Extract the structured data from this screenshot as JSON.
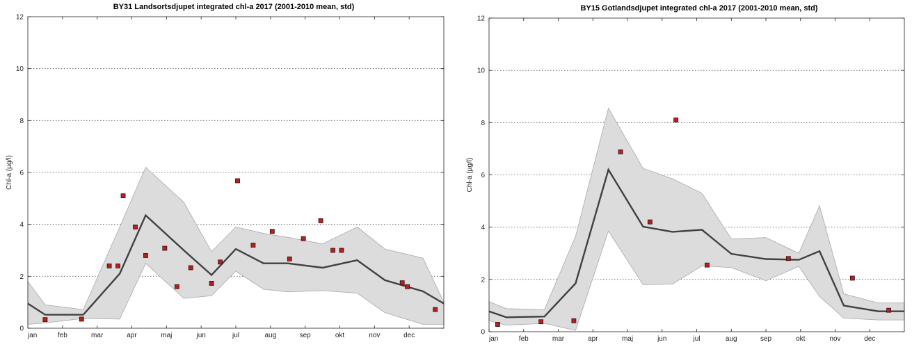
{
  "chart_data": [
    {
      "type": "line",
      "title": "BY31 Landsortsdjupet integrated chl-a 2017 (2001-2010 mean, std)",
      "xlabel": "",
      "ylabel": "Chl-a (µg/l)",
      "ylim": [
        0,
        12
      ],
      "yticks": [
        0,
        2,
        4,
        6,
        8,
        10,
        12
      ],
      "xlim": [
        0,
        12
      ],
      "xticks": [
        0,
        1,
        2,
        3,
        4,
        5,
        6,
        7,
        8,
        9,
        10,
        11
      ],
      "xtick_labels": [
        "jan",
        "feb",
        "mar",
        "apr",
        "maj",
        "jun",
        "jul",
        "aug",
        "sep",
        "okt",
        "nov",
        "dec"
      ],
      "grid": "horizontal-dotted",
      "mean_line": {
        "name": "2001-2010 mean",
        "x": [
          0,
          0.5,
          1.6,
          2.65,
          3.4,
          4.5,
          5.3,
          6.0,
          6.8,
          7.5,
          8.5,
          9.5,
          10.3,
          11.4,
          12
        ],
        "y": [
          0.95,
          0.52,
          0.52,
          2.1,
          4.35,
          3.0,
          2.05,
          3.05,
          2.5,
          2.5,
          2.33,
          2.62,
          1.85,
          1.42,
          0.95
        ]
      },
      "std_band": {
        "name": "std",
        "x": [
          0,
          0.5,
          1.6,
          2.65,
          3.4,
          4.5,
          5.3,
          6.0,
          6.8,
          7.5,
          8.5,
          9.5,
          10.3,
          11.4,
          12
        ],
        "upper": [
          1.8,
          0.9,
          0.72,
          3.9,
          6.2,
          4.85,
          2.95,
          3.9,
          3.65,
          3.5,
          3.25,
          3.9,
          3.05,
          2.7,
          1.0
        ],
        "lower": [
          0.15,
          0.2,
          0.38,
          0.35,
          2.5,
          1.15,
          1.25,
          2.2,
          1.5,
          1.4,
          1.45,
          1.35,
          0.6,
          0.15,
          0.15
        ]
      },
      "observations": {
        "name": "2017",
        "color": "#b22222",
        "x": [
          0.5,
          1.55,
          2.35,
          2.6,
          2.75,
          3.1,
          3.4,
          3.95,
          4.3,
          4.7,
          5.3,
          5.55,
          6.05,
          6.5,
          7.05,
          7.55,
          7.95,
          8.45,
          8.8,
          9.05,
          10.8,
          10.95,
          11.75
        ],
        "y": [
          0.33,
          0.35,
          2.4,
          2.4,
          5.1,
          3.9,
          2.8,
          3.08,
          1.6,
          2.33,
          1.73,
          2.55,
          5.68,
          3.2,
          3.73,
          2.67,
          3.45,
          4.14,
          3.0,
          3.0,
          1.75,
          1.6,
          0.72
        ]
      }
    },
    {
      "type": "line",
      "title": "BY15 Gotlandsdjupet integrated chl-a 2017 (2001-2010 mean, std)",
      "xlabel": "",
      "ylabel": "Chl-a (µg/l)",
      "ylim": [
        0,
        12
      ],
      "yticks": [
        0,
        2,
        4,
        6,
        8,
        10,
        12
      ],
      "xlim": [
        0,
        12
      ],
      "xticks": [
        0,
        1,
        2,
        3,
        4,
        5,
        6,
        7,
        8,
        9,
        10,
        11
      ],
      "xtick_labels": [
        "jan",
        "feb",
        "mar",
        "apr",
        "maj",
        "jun",
        "jul",
        "aug",
        "sep",
        "okt",
        "nov",
        "dec"
      ],
      "grid": "horizontal-dotted",
      "mean_line": {
        "name": "2001-2010 mean",
        "x": [
          0,
          0.5,
          1.6,
          2.5,
          3.45,
          4.45,
          5.3,
          6.15,
          7.0,
          8.0,
          8.95,
          9.55,
          10.25,
          11.25,
          12
        ],
        "y": [
          0.78,
          0.55,
          0.58,
          1.85,
          6.2,
          4.02,
          3.82,
          3.9,
          2.98,
          2.78,
          2.75,
          3.08,
          1.0,
          0.78,
          0.78
        ]
      },
      "std_band": {
        "name": "std",
        "x": [
          0,
          0.5,
          1.6,
          2.5,
          3.45,
          4.45,
          5.3,
          6.15,
          7.0,
          8.0,
          8.95,
          9.55,
          10.25,
          11.25,
          12
        ],
        "upper": [
          1.15,
          0.88,
          0.85,
          3.65,
          8.55,
          6.25,
          5.85,
          5.3,
          3.55,
          3.6,
          3.0,
          4.82,
          1.45,
          1.1,
          1.1
        ],
        "lower": [
          0.42,
          0.25,
          0.32,
          0.05,
          3.85,
          1.8,
          1.82,
          2.52,
          2.45,
          1.95,
          2.5,
          1.35,
          0.52,
          0.45,
          0.45
        ]
      },
      "observations": {
        "name": "2017",
        "color": "#b22222",
        "x": [
          0.25,
          1.5,
          2.45,
          3.8,
          4.65,
          5.4,
          6.3,
          8.65,
          10.5,
          11.55
        ],
        "y": [
          0.28,
          0.38,
          0.42,
          6.88,
          4.2,
          8.1,
          2.55,
          2.8,
          2.05,
          0.82
        ]
      }
    }
  ]
}
